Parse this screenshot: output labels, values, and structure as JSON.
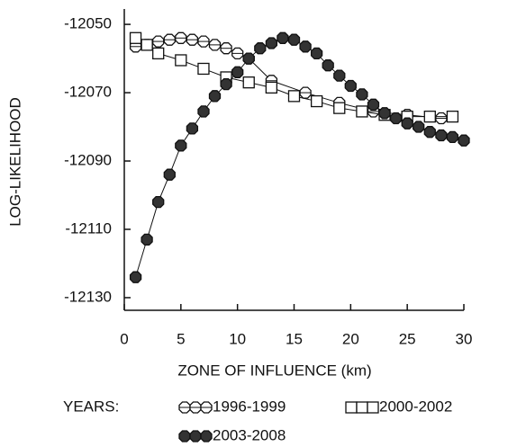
{
  "chart_data": {
    "type": "line",
    "xlabel": "ZONE OF INFLUENCE (km)",
    "ylabel": "LOG-LIKELIHOOD",
    "legend_title": "YEARS:",
    "xlim": [
      0,
      30
    ],
    "xticks": [
      0,
      5,
      10,
      15,
      20,
      25,
      30
    ],
    "ylim": [
      -12133.7,
      -12045.5
    ],
    "yticks": [
      -12050,
      -12070,
      -12090,
      -12110,
      -12130
    ],
    "series": [
      {
        "name": "1996-1999",
        "marker": "open-octagon",
        "color": "#111111",
        "x": [
          1,
          2,
          3,
          4,
          5,
          6,
          7,
          8,
          9,
          10,
          11,
          13,
          16,
          19,
          22,
          25,
          28
        ],
        "values": [
          -12056.5,
          -12056,
          -12055,
          -12054.5,
          -12054,
          -12054.5,
          -12055,
          -12056,
          -12057,
          -12058.5,
          -12060,
          -12066.5,
          -12070,
          -12073,
          -12075.5,
          -12076.5,
          -12077.5
        ]
      },
      {
        "name": "2000-2002",
        "marker": "open-square",
        "color": "#111111",
        "x": [
          1,
          2,
          3,
          5,
          7,
          9,
          11,
          13,
          15,
          17,
          19,
          21,
          23,
          25,
          27,
          29
        ],
        "values": [
          -12054,
          -12056,
          -12058.5,
          -12060.5,
          -12063,
          -12065.5,
          -12067,
          -12068.5,
          -12071,
          -12072.5,
          -12074.5,
          -12075.5,
          -12076.5,
          -12077,
          -12077,
          -12077
        ]
      },
      {
        "name": "2003-2008",
        "marker": "filled-octagon",
        "color": "#111111",
        "x": [
          1,
          2,
          3,
          4,
          5,
          6,
          7,
          8,
          9,
          10,
          11,
          12,
          13,
          14,
          15,
          16,
          17,
          18,
          19,
          20,
          21,
          22,
          23,
          24,
          25,
          26,
          27,
          28,
          29,
          30
        ],
        "values": [
          -12124,
          -12113,
          -12102,
          -12094,
          -12085.5,
          -12080.5,
          -12075.5,
          -12071,
          -12067.5,
          -12064,
          -12060,
          -12057,
          -12055.5,
          -12054,
          -12054.5,
          -12056.5,
          -12058.5,
          -12062,
          -12065,
          -12068,
          -12070.5,
          -12073.5,
          -12076,
          -12077.5,
          -12079,
          -12080,
          -12081.5,
          -12082.5,
          -12083,
          -12084
        ]
      }
    ]
  }
}
